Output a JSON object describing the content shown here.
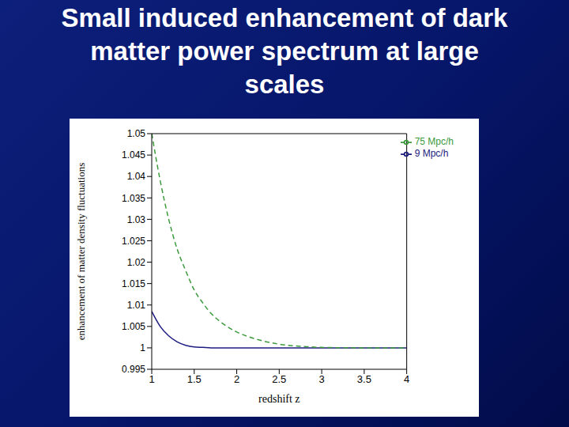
{
  "chart_data": {
    "type": "line",
    "title": "Small induced enhancement of dark matter power spectrum at large scales",
    "x_label": "redshift z",
    "y_label": "enhancement of matter density fluctuations",
    "x": [
      1.0,
      1.1,
      1.2,
      1.3,
      1.4,
      1.5,
      1.6,
      1.7,
      1.8,
      1.9,
      2.0,
      2.2,
      2.4,
      2.6,
      2.8,
      3.0,
      3.5,
      4.0
    ],
    "series": [
      {
        "name": "9 Mpc/h",
        "color": "#1c1c80",
        "line_style": "solid",
        "values": [
          1.0085,
          1.005,
          1.0028,
          1.0014,
          1.0006,
          1.0002,
          1.0001,
          1.0,
          1.0,
          1.0,
          1.0,
          1.0,
          1.0,
          1.0,
          1.0,
          1.0,
          1.0,
          1.0
        ]
      },
      {
        "name": "75 Mpc/h",
        "color": "#3c9a3c",
        "line_style": "dashed",
        "values": [
          1.05,
          1.039,
          1.03,
          1.023,
          1.018,
          1.0135,
          1.0105,
          1.008,
          1.0062,
          1.0048,
          1.0037,
          1.0022,
          1.0012,
          1.0006,
          1.0003,
          1.0001,
          1.0,
          1.0
        ]
      }
    ],
    "xlim": [
      1,
      4
    ],
    "xticks": [
      1,
      1.5,
      2,
      2.5,
      3,
      3.5,
      4
    ],
    "ylim": [
      0.995,
      1.05
    ],
    "yticks": [
      0.995,
      1,
      1.005,
      1.01,
      1.015,
      1.02,
      1.025,
      1.03,
      1.035,
      1.04,
      1.045,
      1.05
    ],
    "grid": false,
    "legend": "top-right"
  }
}
